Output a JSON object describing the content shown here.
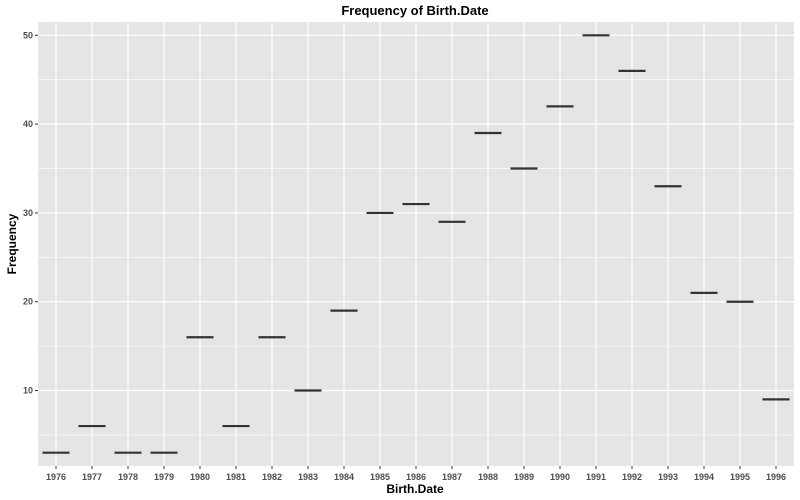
{
  "chart_data": {
    "type": "crossbar",
    "title": "Frequency of Birth.Date",
    "xlabel": "Birth.Date",
    "ylabel": "Frequency",
    "categories": [
      "1976",
      "1977",
      "1978",
      "1979",
      "1980",
      "1981",
      "1982",
      "1983",
      "1984",
      "1985",
      "1986",
      "1987",
      "1988",
      "1989",
      "1990",
      "1991",
      "1992",
      "1993",
      "1994",
      "1995",
      "1996"
    ],
    "values": [
      3,
      6,
      3,
      3,
      16,
      6,
      16,
      10,
      19,
      30,
      31,
      29,
      39,
      35,
      42,
      50,
      46,
      33,
      21,
      20,
      9
    ],
    "ylim": [
      1.5,
      51.5
    ],
    "yticks": [
      10,
      20,
      30,
      40,
      50
    ],
    "grid": true,
    "colors": {
      "panel_background": "#e5e5e5",
      "gridline": "#ffffff",
      "mark": "#333333"
    }
  }
}
